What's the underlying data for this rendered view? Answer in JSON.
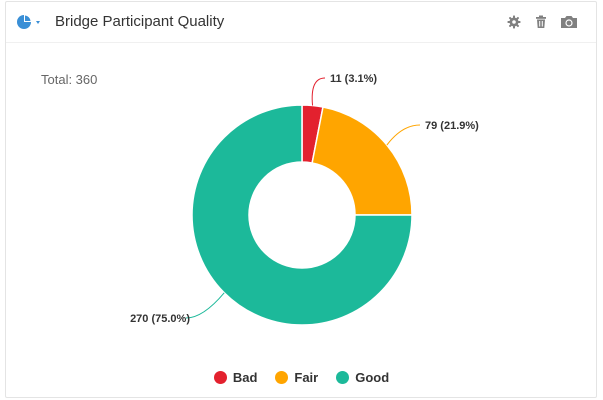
{
  "header": {
    "title": "Bridge Participant Quality",
    "menu_icon": "pie-chart-icon",
    "tools": [
      {
        "name": "settings",
        "icon": "gear-icon"
      },
      {
        "name": "delete",
        "icon": "trash-icon"
      },
      {
        "name": "snapshot",
        "icon": "camera-icon"
      }
    ]
  },
  "total_label": "Total: 360",
  "colors": {
    "accent": "#3a8fd6",
    "icon": "#808080"
  },
  "chart_data": {
    "type": "pie",
    "variant": "donut",
    "title": "",
    "total": 360,
    "categories": [
      "Bad",
      "Fair",
      "Good"
    ],
    "values": [
      11,
      79,
      270
    ],
    "percent": [
      3.1,
      21.9,
      75.0
    ],
    "labels": [
      "11 (3.1%)",
      "79 (21.9%)",
      "270 (75.0%)"
    ],
    "colors": [
      "#e3212e",
      "#ffa500",
      "#1cb99a"
    ],
    "legend_position": "bottom-center"
  }
}
